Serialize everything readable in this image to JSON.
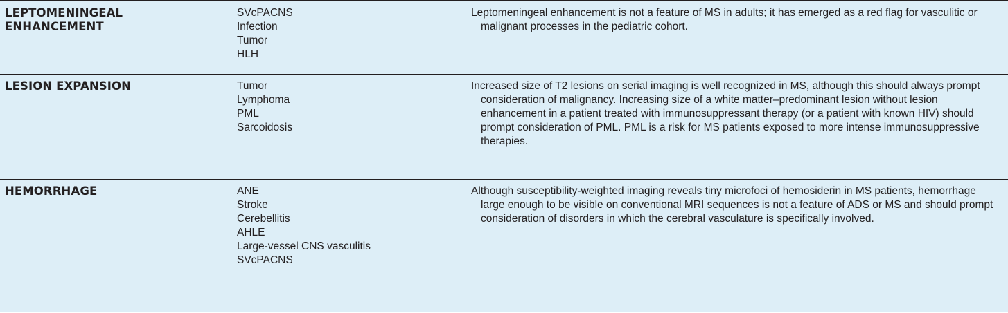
{
  "rows": [
    {
      "feature": "LEPTOMENINGEAL ENHANCEMENT",
      "diagnoses": [
        "SVcPACNS",
        "Infection",
        "Tumor",
        "HLH"
      ],
      "comment": "Leptomeningeal enhancement is not a feature of MS in adults; it has emerged as a red flag for vasculitic or malignant processes in the pediatric cohort."
    },
    {
      "feature": "LESION EXPANSION",
      "diagnoses": [
        "Tumor",
        "Lymphoma",
        "PML",
        "Sarcoidosis"
      ],
      "comment": "Increased size of T2 lesions on serial imaging is well recognized in MS, although this should always prompt consideration of malignancy. Increasing size of a white matter–predominant lesion without lesion enhancement in a patient treated with immunosuppressant therapy (or a patient with known HIV) should prompt consideration of PML. PML is a risk for MS patients exposed to more intense immunosuppressive therapies."
    },
    {
      "feature": "HEMORRHAGE",
      "diagnoses": [
        "ANE",
        "Stroke",
        "Cerebellitis",
        "AHLE",
        "Large-vessel CNS vasculitis",
        "SVcPACNS"
      ],
      "comment": "Although susceptibility-weighted imaging reveals tiny microfoci of hemosiderin in MS patients, hemorrhage large enough to be visible on conventional MRI sequences is not a feature of ADS or MS and should prompt consideration of disorders in which the cerebral vasculature is specifically involved."
    }
  ],
  "colors": {
    "row_background": "#ddeef7",
    "text": "#231f20",
    "rule": "#231f20"
  }
}
